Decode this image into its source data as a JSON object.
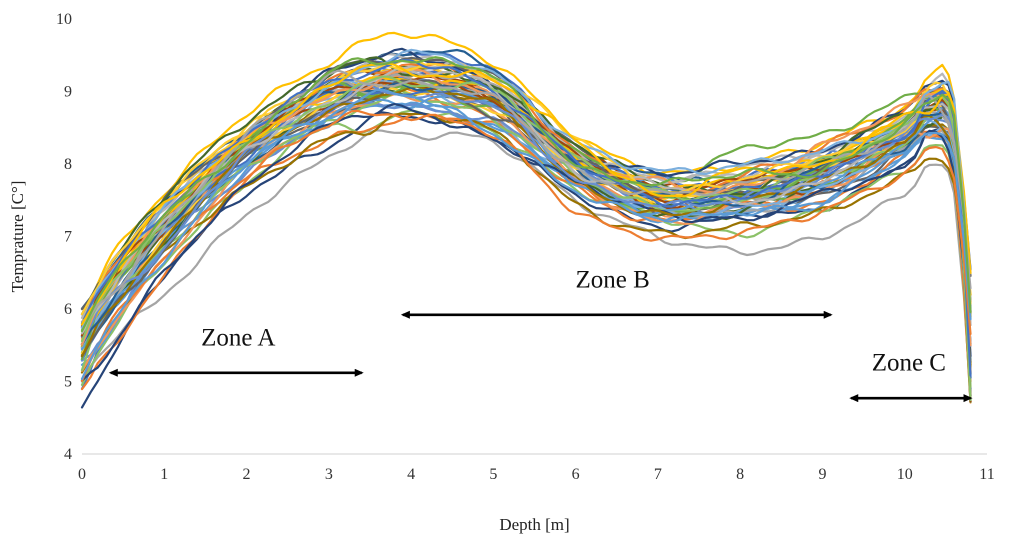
{
  "chart_data": {
    "type": "line",
    "title": "",
    "xlabel": "Depth [m]",
    "ylabel": "Temprature [C°]",
    "xlim": [
      0,
      11
    ],
    "ylim": [
      4,
      10
    ],
    "xticks": [
      "0",
      "1",
      "2",
      "3",
      "4",
      "5",
      "6",
      "7",
      "8",
      "9",
      "10",
      "11"
    ],
    "yticks": [
      "4",
      "5",
      "6",
      "7",
      "8",
      "9",
      "10"
    ],
    "grid": false,
    "legend": "none",
    "palette": [
      "#4472C4",
      "#ED7D31",
      "#A5A5A5",
      "#FFC000",
      "#5B9BD5",
      "#70AD47",
      "#264478",
      "#9E480E",
      "#636363",
      "#997300",
      "#255E91",
      "#43682B",
      "#698ED0",
      "#F1975A",
      "#B7B7B7",
      "#FFCD33",
      "#7CAFDD",
      "#8CC168"
    ],
    "series_count": 60,
    "series": [
      {
        "x": [
          0,
          0.3,
          1,
          2,
          3,
          3.5,
          4,
          5,
          6,
          7,
          8,
          9,
          10,
          10.3,
          10.6,
          10.8
        ],
        "y": [
          4.9,
          5.6,
          6.9,
          8.2,
          9.2,
          9.4,
          9.5,
          9.3,
          8.2,
          7.6,
          7.8,
          8.1,
          8.6,
          8.9,
          8.6,
          4.75
        ]
      },
      {
        "x": [
          0,
          0.3,
          1,
          2,
          3,
          3.5,
          4,
          5,
          6,
          7,
          8,
          9,
          10,
          10.3,
          10.6,
          10.8
        ],
        "y": [
          5.6,
          6.3,
          7.2,
          8.4,
          9.0,
          9.1,
          9.0,
          8.6,
          7.7,
          7.3,
          7.4,
          7.7,
          8.2,
          8.4,
          8.0,
          5.0
        ]
      },
      {
        "x": [
          0,
          0.3,
          1,
          2,
          3,
          3.5,
          4,
          5,
          6,
          7,
          8,
          9,
          10,
          10.3,
          10.6,
          10.8
        ],
        "y": [
          5.0,
          5.5,
          6.2,
          7.3,
          8.1,
          8.4,
          8.4,
          8.3,
          7.5,
          7.0,
          6.8,
          7.0,
          7.6,
          8.0,
          7.6,
          4.8
        ]
      },
      {
        "x": [
          0,
          0.3,
          1,
          2,
          3,
          3.5,
          4,
          5,
          6,
          7,
          8,
          9,
          10,
          10.3,
          10.6,
          10.8
        ],
        "y": [
          5.8,
          6.6,
          7.6,
          8.7,
          9.4,
          9.7,
          9.8,
          9.4,
          8.4,
          7.9,
          8.0,
          8.3,
          8.8,
          9.2,
          8.9,
          5.2
        ]
      },
      {
        "x": [
          0,
          0.3,
          1,
          2,
          3,
          3.5,
          4,
          5,
          6,
          7,
          8,
          9,
          10,
          10.3,
          10.6,
          10.8
        ],
        "y": [
          5.3,
          5.9,
          6.8,
          7.9,
          8.6,
          8.8,
          8.8,
          8.5,
          7.8,
          7.4,
          7.3,
          7.6,
          8.1,
          8.5,
          8.1,
          4.9
        ]
      },
      {
        "x": [
          0,
          0.3,
          1,
          2,
          3,
          3.5,
          4,
          5,
          6,
          7,
          8,
          9,
          10,
          10.3,
          10.6,
          10.8
        ],
        "y": [
          5.4,
          6.0,
          7.0,
          8.1,
          8.8,
          9.0,
          9.1,
          8.9,
          8.0,
          7.7,
          8.2,
          8.4,
          8.9,
          9.0,
          8.8,
          5.1
        ]
      }
    ],
    "annotations": [
      {
        "text": "Zone A",
        "arrow_from": 0.35,
        "arrow_to": 3.4,
        "arrow_y": 5.12,
        "text_x": 1.9,
        "text_y": 5.5
      },
      {
        "text": "Zone B",
        "arrow_from": 3.9,
        "arrow_to": 9.1,
        "arrow_y": 5.92,
        "text_x": 6.45,
        "text_y": 6.3
      },
      {
        "text": "Zone C",
        "arrow_from": 9.35,
        "arrow_to": 10.8,
        "arrow_y": 4.77,
        "text_x": 10.05,
        "text_y": 5.15
      }
    ]
  }
}
